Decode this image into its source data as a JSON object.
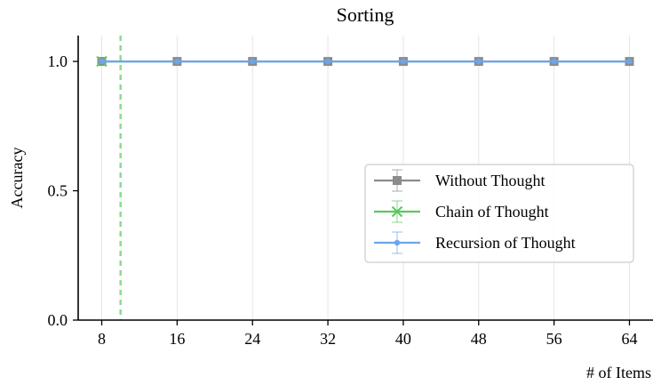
{
  "chart_data": {
    "type": "line",
    "title": "Sorting",
    "xlabel": "# of Items",
    "ylabel": "Accuracy",
    "x_ticks": [
      8,
      16,
      24,
      32,
      40,
      48,
      56,
      64
    ],
    "x_tick_labels": [
      "8",
      "16",
      "24",
      "32",
      "40",
      "48",
      "56",
      "64"
    ],
    "y_ticks": [
      0.0,
      0.5,
      1.0
    ],
    "y_tick_labels": [
      "0.0",
      "0.5",
      "1.0"
    ],
    "xlim": [
      5.5,
      66.5
    ],
    "ylim": [
      0.0,
      1.1
    ],
    "grid": "vertical",
    "legend_position": "center-right",
    "cot_limit_x": 10,
    "series": [
      {
        "name": "Without Thought",
        "color": "#8c8c8c",
        "marker": "square",
        "x": [
          8,
          16,
          24,
          32,
          40,
          48,
          56,
          64
        ],
        "y": [
          1.0,
          1.0,
          1.0,
          1.0,
          1.0,
          1.0,
          1.0,
          1.0
        ]
      },
      {
        "name": "Chain of Thought",
        "color": "#5cc85c",
        "marker": "x",
        "x": [
          8
        ],
        "y": [
          1.0
        ]
      },
      {
        "name": "Recursion of Thought",
        "color": "#6aa6ec",
        "marker": "dot",
        "x": [
          8,
          16,
          24,
          32,
          40,
          48,
          56,
          64
        ],
        "y": [
          1.0,
          1.0,
          1.0,
          1.0,
          1.0,
          1.0,
          1.0,
          1.0
        ]
      }
    ]
  }
}
